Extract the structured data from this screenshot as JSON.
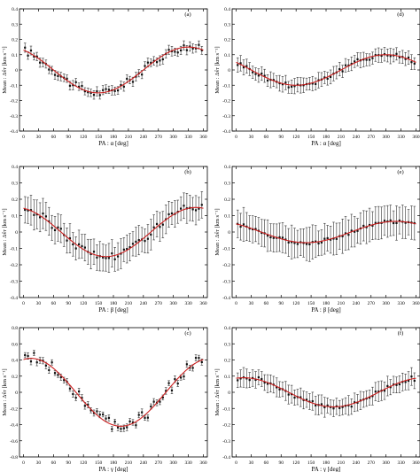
{
  "chart_data": [
    {
      "type": "scatter",
      "panel_label": "(a)",
      "xlabel": "PA : α [deg]",
      "ylabel": "Mean : Δv̂r [km s⁻¹]",
      "xlim": [
        -8,
        368
      ],
      "ylim": [
        -0.4,
        0.4
      ],
      "xticks": [
        0,
        30,
        60,
        90,
        120,
        150,
        180,
        210,
        240,
        270,
        300,
        330,
        360
      ],
      "yticks": [
        -0.4,
        -0.3,
        -0.2,
        -0.1,
        0,
        0.1,
        0.2,
        0.3,
        0.4
      ],
      "grid": false,
      "series": [
        {
          "amplitude": 0.15,
          "phase_deg": 330,
          "offset": 0.0,
          "err": 0.03,
          "n": 60
        }
      ]
    },
    {
      "type": "scatter",
      "panel_label": "(d)",
      "xlabel": "PA : α [deg]",
      "ylabel": "Mean : Δv̂r [km s⁻¹]",
      "xlim": [
        -8,
        368
      ],
      "ylim": [
        -0.4,
        0.4
      ],
      "xticks": [
        0,
        30,
        60,
        90,
        120,
        150,
        180,
        210,
        240,
        270,
        300,
        330,
        360
      ],
      "yticks": [
        -0.4,
        -0.3,
        -0.2,
        -0.1,
        0,
        0.1,
        0.2,
        0.3,
        0.4
      ],
      "grid": false,
      "series": [
        {
          "amplitude": 0.1,
          "phase_deg": 300,
          "offset": 0.0,
          "err": 0.05,
          "n": 60
        }
      ]
    },
    {
      "type": "scatter",
      "panel_label": "(b)",
      "xlabel": "PA : β [deg]",
      "ylabel": "Mean : Δv̂r [km s⁻¹]",
      "xlim": [
        -8,
        368
      ],
      "ylim": [
        -0.4,
        0.4
      ],
      "xticks": [
        0,
        30,
        60,
        90,
        120,
        150,
        180,
        210,
        240,
        270,
        300,
        330,
        360
      ],
      "yticks": [
        -0.4,
        -0.3,
        -0.2,
        -0.1,
        0,
        0.1,
        0.2,
        0.3,
        0.4
      ],
      "grid": false,
      "series": [
        {
          "amplitude": 0.15,
          "phase_deg": 345,
          "offset": 0.0,
          "err": 0.09,
          "n": 60
        }
      ]
    },
    {
      "type": "scatter",
      "panel_label": "(e)",
      "xlabel": "PA : β [deg]",
      "ylabel": "Mean : Δv̂r [km s⁻¹]",
      "xlim": [
        -8,
        368
      ],
      "ylim": [
        -0.4,
        0.4
      ],
      "xticks": [
        0,
        30,
        60,
        90,
        120,
        150,
        180,
        210,
        240,
        270,
        300,
        330,
        360
      ],
      "yticks": [
        -0.4,
        -0.3,
        -0.2,
        -0.1,
        0,
        0.1,
        0.2,
        0.3,
        0.4
      ],
      "grid": false,
      "series": [
        {
          "amplitude": 0.065,
          "phase_deg": 320,
          "offset": 0.0,
          "err": 0.1,
          "n": 60
        }
      ]
    },
    {
      "type": "scatter",
      "panel_label": "(c)",
      "xlabel": "PA : γ [deg]",
      "ylabel": "Mean : Δv̂r [km s⁻¹]",
      "xlim": [
        -8,
        368
      ],
      "ylim": [
        -0.8,
        0.8
      ],
      "xticks": [
        0,
        30,
        60,
        90,
        120,
        150,
        180,
        210,
        240,
        270,
        300,
        330,
        360
      ],
      "yticks": [
        -0.8,
        -0.6,
        -0.4,
        -0.2,
        0,
        0.2,
        0.4,
        0.6,
        0.8
      ],
      "grid": false,
      "series": [
        {
          "amplitude": 0.42,
          "phase_deg": 15,
          "offset": 0.0,
          "err": 0.04,
          "n": 60
        }
      ]
    },
    {
      "type": "scatter",
      "panel_label": "(f)",
      "xlabel": "PA : γ [deg]",
      "ylabel": "Mean : Δv̂r [km s⁻¹]",
      "xlim": [
        -8,
        368
      ],
      "ylim": [
        -0.4,
        0.4
      ],
      "xticks": [
        0,
        30,
        60,
        90,
        120,
        150,
        180,
        210,
        240,
        270,
        300,
        330,
        360
      ],
      "yticks": [
        -0.4,
        -0.3,
        -0.2,
        -0.1,
        0,
        0.1,
        0.2,
        0.3,
        0.4
      ],
      "grid": false,
      "series": [
        {
          "amplitude": 0.09,
          "phase_deg": 15,
          "offset": 0.0,
          "err": 0.06,
          "n": 60
        }
      ]
    }
  ],
  "colors": {
    "fit_line": "#cc1f1f",
    "points": "#111111",
    "axes": "#000000"
  }
}
